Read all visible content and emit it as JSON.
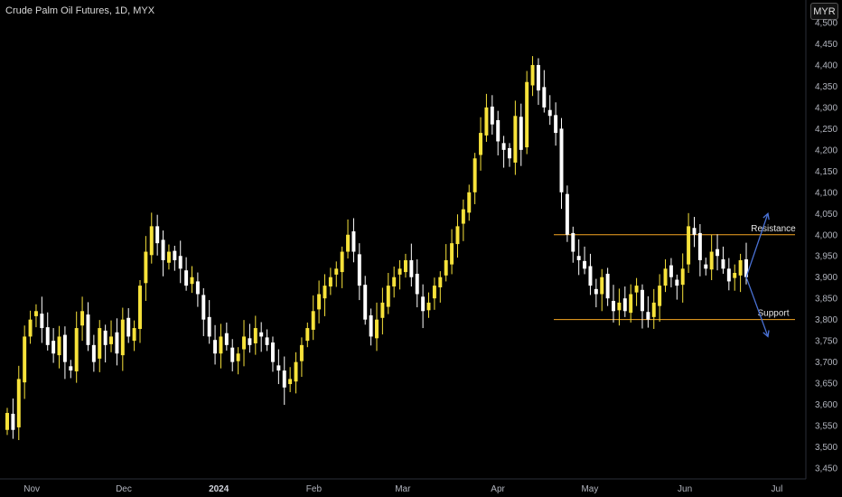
{
  "header": {
    "title": "Crude Palm Oil Futures, 1D, MYX",
    "currency": "MYR"
  },
  "colors": {
    "up": "#f7e23a",
    "down": "#ffffff",
    "level": "#f5a623",
    "arrow": "#4a72d6",
    "background": "#000000"
  },
  "chart_data": {
    "type": "candlestick",
    "title": "Crude Palm Oil Futures, 1D, MYX",
    "y_axis": {
      "ticks": [
        3450,
        3500,
        3550,
        3600,
        3650,
        3700,
        3750,
        3800,
        3850,
        3900,
        3950,
        4000,
        4050,
        4100,
        4150,
        4200,
        4250,
        4300,
        4350,
        4400,
        4450,
        4500
      ],
      "range": [
        3430,
        4520
      ],
      "position": "right",
      "unit": "MYR"
    },
    "x_axis": {
      "labels": [
        {
          "text": "Nov",
          "date": "2023-11-01",
          "bold": false
        },
        {
          "text": "Dec",
          "date": "2023-12-01",
          "bold": false
        },
        {
          "text": "2024",
          "date": "2024-01-01",
          "bold": true
        },
        {
          "text": "Feb",
          "date": "2024-02-01",
          "bold": false
        },
        {
          "text": "Mar",
          "date": "2024-03-01",
          "bold": false
        },
        {
          "text": "Apr",
          "date": "2024-04-01",
          "bold": false
        },
        {
          "text": "May",
          "date": "2024-05-01",
          "bold": false
        },
        {
          "text": "Jun",
          "date": "2024-06-01",
          "bold": false
        },
        {
          "text": "Jul",
          "date": "2024-07-01",
          "bold": false
        }
      ]
    },
    "closes": [
      3580,
      3540,
      3660,
      3760,
      3800,
      3820,
      3780,
      3740,
      3720,
      3760,
      3700,
      3680,
      3780,
      3820,
      3740,
      3700,
      3780,
      3740,
      3760,
      3720,
      3800,
      3760,
      3780,
      3880,
      3960,
      4020,
      3980,
      3940,
      3960,
      3940,
      3920,
      3880,
      3900,
      3860,
      3800,
      3760,
      3720,
      3760,
      3740,
      3700,
      3720,
      3760,
      3740,
      3780,
      3760,
      3740,
      3700,
      3680,
      3640,
      3660,
      3700,
      3740,
      3780,
      3820,
      3860,
      3880,
      3900,
      3920,
      3960,
      4000,
      3960,
      3880,
      3800,
      3760,
      3800,
      3840,
      3880,
      3900,
      3920,
      3940,
      3900,
      3860,
      3820,
      3840,
      3880,
      3900,
      3940,
      3980,
      4020,
      4060,
      4100,
      4180,
      4240,
      4300,
      4260,
      4220,
      4200,
      4180,
      4280,
      4200,
      4360,
      4400,
      4340,
      4300,
      4280,
      4240,
      4100,
      4000,
      3960,
      3940,
      3920,
      3880,
      3860,
      3900,
      3850,
      3820,
      3840,
      3820,
      3860,
      3880,
      3820,
      3800,
      3840,
      3880,
      3920,
      3900,
      3880,
      3920,
      4020,
      4000,
      3940,
      3920,
      3960,
      3950,
      3920,
      3890,
      3910,
      3940,
      3900
    ],
    "levels": [
      {
        "name": "Resistance",
        "value": 4000
      },
      {
        "name": "Support",
        "value": 3800
      }
    ],
    "annotations": [
      "Resistance",
      "Support"
    ]
  }
}
